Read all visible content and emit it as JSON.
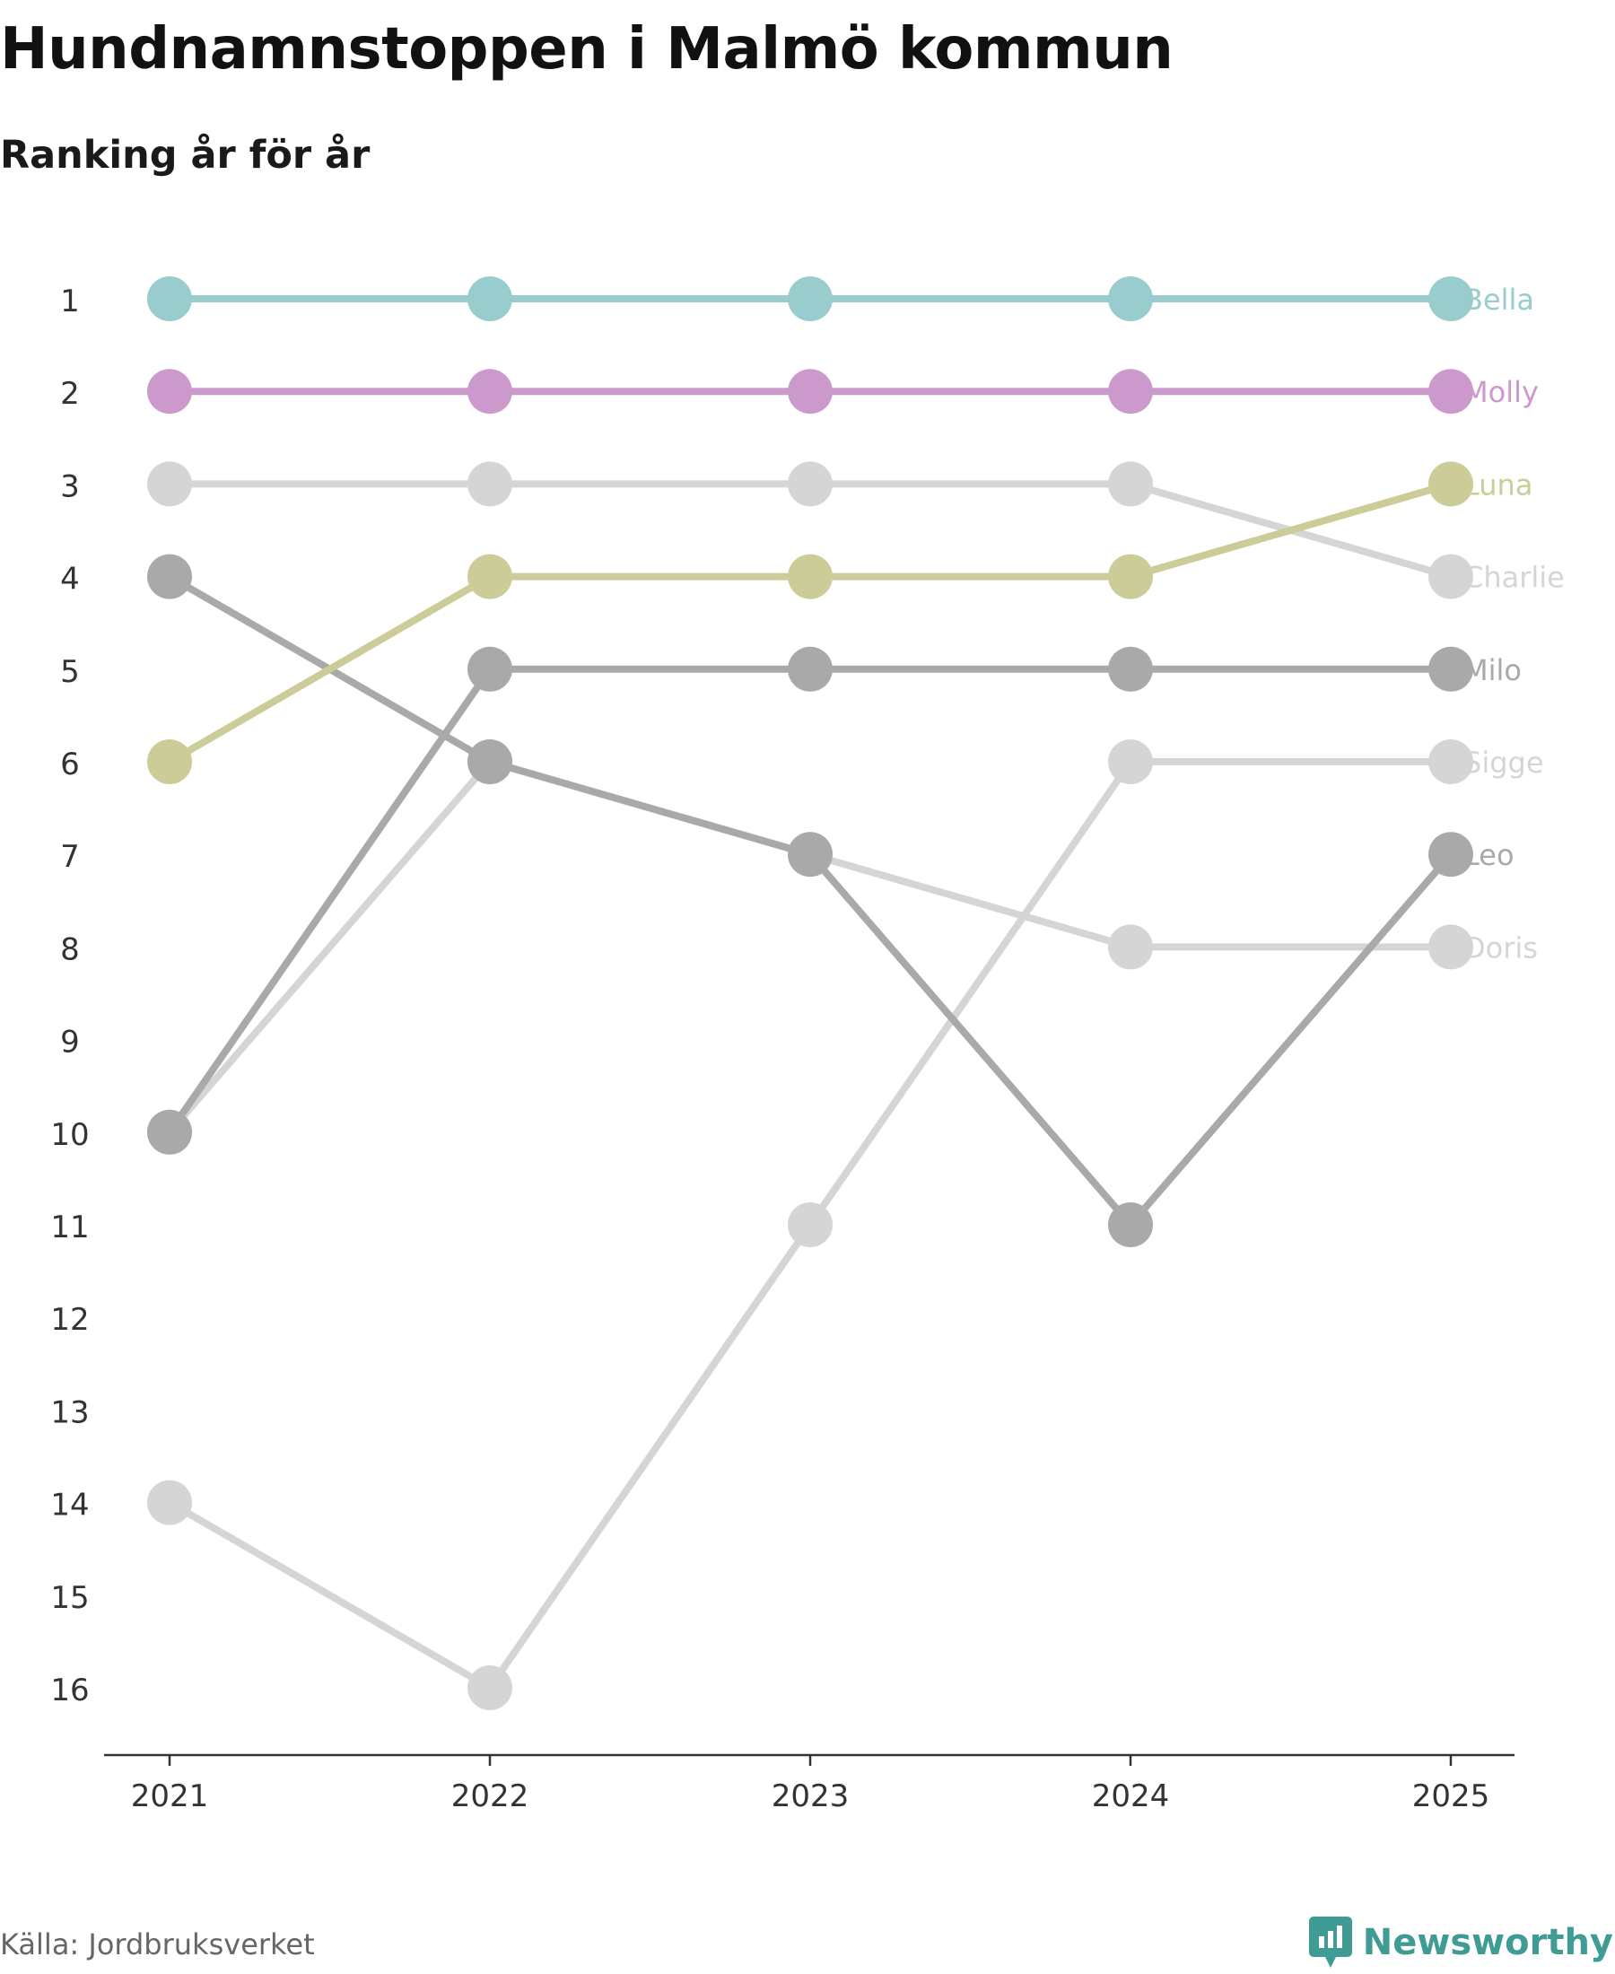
{
  "title": "Hundnamnstoppen i Malmö kommun",
  "subtitle": "Ranking år för år",
  "source": "Källa: Jordbruksverket",
  "brand": {
    "name": "Newsworthy",
    "icon": "newsworthy-logo-icon",
    "color": "#3e9c94"
  },
  "chart_data": {
    "type": "line",
    "title": "Hundnamnstoppen i Malmö kommun",
    "subtitle": "Ranking år för år",
    "xlabel": "",
    "ylabel": "",
    "categories": [
      "2021",
      "2022",
      "2023",
      "2024",
      "2025"
    ],
    "y_ticks": [
      "1",
      "2",
      "3",
      "4",
      "5",
      "6",
      "7",
      "8",
      "9",
      "10",
      "11",
      "12",
      "13",
      "14",
      "15",
      "16"
    ],
    "ylim": [
      1,
      16
    ],
    "y_inverted": true,
    "grid": false,
    "legend": "direct labels at right end of lines",
    "series": [
      {
        "name": "Sigge",
        "color": "#d5d5d5",
        "values": [
          14,
          16,
          11,
          6,
          6
        ]
      },
      {
        "name": "Doris",
        "color": "#d5d5d5",
        "values": [
          10,
          6,
          7,
          8,
          8
        ]
      },
      {
        "name": "Charlie",
        "color": "#d5d5d5",
        "values": [
          3,
          3,
          3,
          3,
          4
        ]
      },
      {
        "name": "Leo",
        "color": "#a9a9a9",
        "values": [
          4,
          6,
          7,
          11,
          7
        ]
      },
      {
        "name": "Milo",
        "color": "#a9a9a9",
        "values": [
          10,
          5,
          5,
          5,
          5
        ]
      },
      {
        "name": "Luna",
        "color": "#cccc99",
        "values": [
          6,
          4,
          4,
          4,
          3
        ]
      },
      {
        "name": "Molly",
        "color": "#cc99cc",
        "values": [
          2,
          2,
          2,
          2,
          2
        ]
      },
      {
        "name": "Bella",
        "color": "#99cccc",
        "values": [
          1,
          1,
          1,
          1,
          1
        ]
      }
    ]
  }
}
